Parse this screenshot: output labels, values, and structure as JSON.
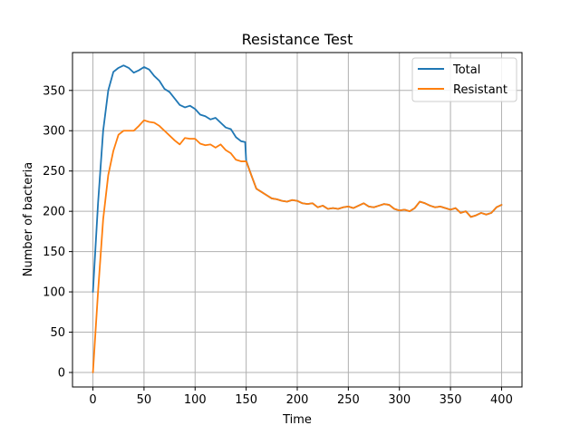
{
  "chart_data": {
    "type": "line",
    "title": "Resistance Test",
    "xlabel": "Time",
    "ylabel": "Number of bacteria",
    "xlim": [
      -20,
      420
    ],
    "ylim": [
      -18,
      397
    ],
    "xticks": [
      0,
      50,
      100,
      150,
      200,
      250,
      300,
      350,
      400
    ],
    "yticks": [
      0,
      50,
      100,
      150,
      200,
      250,
      300,
      350
    ],
    "grid": true,
    "legend_position": "top-right",
    "series": [
      {
        "name": "Total",
        "color": "#1f77b4",
        "x": [
          0,
          5,
          10,
          15,
          20,
          25,
          30,
          35,
          40,
          45,
          50,
          55,
          60,
          65,
          70,
          75,
          80,
          85,
          90,
          95,
          100,
          105,
          110,
          115,
          120,
          125,
          130,
          135,
          140,
          145,
          149,
          150,
          155,
          160,
          165,
          170,
          175,
          180,
          185,
          190,
          195,
          200,
          205,
          210,
          215,
          220,
          225,
          230,
          235,
          240,
          245,
          250,
          255,
          260,
          265,
          270,
          275,
          280,
          285,
          290,
          295,
          300,
          305,
          310,
          315,
          320,
          325,
          330,
          335,
          340,
          345,
          350,
          355,
          360,
          365,
          370,
          375,
          380,
          385,
          390,
          395,
          400
        ],
        "values": [
          100,
          210,
          300,
          350,
          373,
          378,
          381,
          378,
          372,
          375,
          379,
          376,
          368,
          362,
          352,
          348,
          340,
          332,
          329,
          331,
          327,
          320,
          318,
          314,
          316,
          310,
          304,
          302,
          292,
          287,
          286,
          263,
          245,
          228,
          224,
          220,
          216,
          215,
          213,
          212,
          214,
          213,
          210,
          209,
          210,
          205,
          207,
          203,
          204,
          203,
          205,
          206,
          204,
          207,
          210,
          206,
          205,
          207,
          209,
          208,
          203,
          201,
          202,
          200,
          204,
          212,
          210,
          207,
          205,
          206,
          204,
          202,
          204,
          198,
          200,
          193,
          195,
          198,
          196,
          198,
          205,
          208
        ]
      },
      {
        "name": "Resistant",
        "color": "#ff7f0e",
        "x": [
          0,
          5,
          10,
          15,
          20,
          25,
          30,
          35,
          40,
          45,
          50,
          55,
          60,
          65,
          70,
          75,
          80,
          85,
          90,
          95,
          100,
          105,
          110,
          115,
          120,
          125,
          130,
          135,
          140,
          145,
          150,
          155,
          160,
          165,
          170,
          175,
          180,
          185,
          190,
          195,
          200,
          205,
          210,
          215,
          220,
          225,
          230,
          235,
          240,
          245,
          250,
          255,
          260,
          265,
          270,
          275,
          280,
          285,
          290,
          295,
          300,
          305,
          310,
          315,
          320,
          325,
          330,
          335,
          340,
          345,
          350,
          355,
          360,
          365,
          370,
          375,
          380,
          385,
          390,
          395,
          400
        ],
        "values": [
          0,
          100,
          190,
          245,
          275,
          295,
          300,
          300,
          300,
          306,
          313,
          311,
          310,
          306,
          300,
          294,
          288,
          283,
          291,
          290,
          290,
          284,
          282,
          283,
          279,
          283,
          276,
          272,
          264,
          262,
          262,
          245,
          228,
          224,
          220,
          216,
          215,
          213,
          212,
          214,
          213,
          210,
          209,
          210,
          205,
          207,
          203,
          204,
          203,
          205,
          206,
          204,
          207,
          210,
          206,
          205,
          207,
          209,
          208,
          203,
          201,
          202,
          200,
          204,
          212,
          210,
          207,
          205,
          206,
          204,
          202,
          204,
          198,
          200,
          193,
          195,
          198,
          196,
          198,
          205,
          208
        ]
      }
    ]
  }
}
